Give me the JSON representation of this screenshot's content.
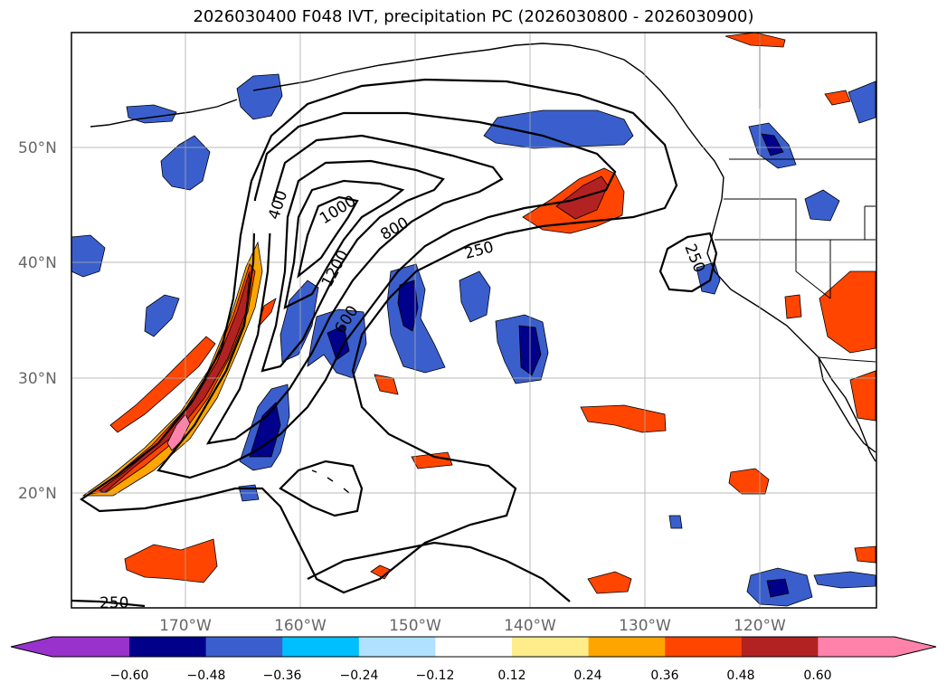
{
  "title": "2026030400 F048 IVT, precipitation PC (2026030800 - 2026030900)",
  "map": {
    "lat_labels": [
      "50°N",
      "40°N",
      "30°N",
      "20°N"
    ],
    "lon_labels": [
      "170°W",
      "160°W",
      "150°W",
      "140°W",
      "130°W",
      "120°W"
    ],
    "ivt_contour_levels": [
      250,
      400,
      600,
      800,
      1000,
      1200
    ],
    "ivt_contour_labels": [
      "400",
      "1000",
      "800",
      "1200",
      "250",
      "600",
      "250",
      "250"
    ]
  },
  "colorbar": {
    "ticks": [
      "−0.60",
      "−0.48",
      "−0.36",
      "−0.24",
      "−0.12",
      "0.12",
      "0.24",
      "0.36",
      "0.48",
      "0.60"
    ],
    "colors": [
      "#9932cc",
      "#00008b",
      "#3a5fcd",
      "#00bfff",
      "#b0e2ff",
      "#ffffff",
      "#ffec8b",
      "#ffa500",
      "#ff4500",
      "#b22222",
      "#ff82ab"
    ],
    "extend": "both"
  }
}
